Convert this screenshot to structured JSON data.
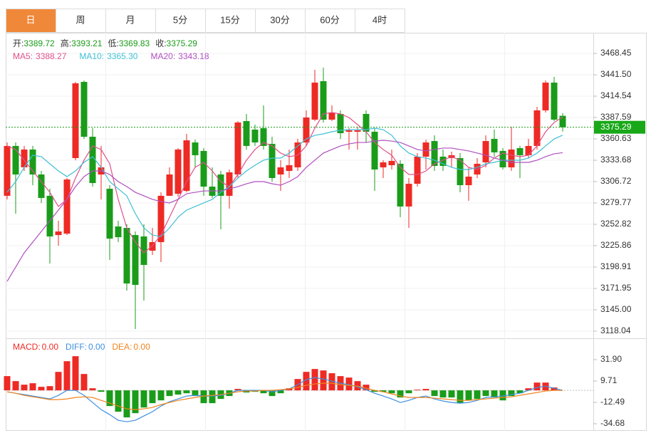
{
  "tabs": [
    "日",
    "周",
    "月",
    "5分",
    "15分",
    "30分",
    "60分",
    "4时"
  ],
  "active_tab": 0,
  "chart_data": [
    {
      "type": "candlestick",
      "ohlc_labels": [
        "开:",
        "高:",
        "低:",
        "收:"
      ],
      "up_color": "#ee2a24",
      "down_color": "#1a9c1a",
      "open": [
        3288.8,
        3351.7,
        3324.7,
        3347.2,
        3315.7,
        3288.8,
        3239.3,
        3241.1,
        3336.4,
        3432.5,
        3363.3,
        3315.7,
        3297.7,
        3250.1,
        3248.3,
        3239.3,
        3237.5,
        3219.6,
        3230.4,
        3288.8,
        3291.4,
        3295.0,
        3356.1,
        3345.4,
        3300.4,
        3315.7,
        3288.8,
        3315.7,
        3383.1,
        3372.3,
        3374.1,
        3354.3,
        3315.7,
        3320.2,
        3324.7,
        3356.1,
        3384.9,
        3433.4,
        3384.9,
        3392.1,
        3369.6,
        3369.6,
        3392.1,
        3369.6,
        3324.7,
        3327.4,
        3329.2,
        3275.3,
        3304.0,
        3338.2,
        3357.9,
        3338.2,
        3336.4,
        3336.4,
        3302.2,
        3315.7,
        3331.0,
        3360.6,
        3345.4,
        3324.7,
        3349.0,
        3340.0,
        3351.7,
        3396.6,
        3431.6,
        3389.72
      ],
      "high": [
        3356.1,
        3356.1,
        3351.7,
        3351.7,
        3320.2,
        3297.7,
        3257.3,
        3311.2,
        3432.5,
        3434.3,
        3374.1,
        3351.7,
        3302.2,
        3257.3,
        3252.8,
        3243.8,
        3252.8,
        3248.3,
        3293.2,
        3324.7,
        3349.0,
        3366.9,
        3359.7,
        3349.0,
        3324.7,
        3320.2,
        3322.0,
        3383.1,
        3392.1,
        3378.6,
        3402.9,
        3363.3,
        3333.7,
        3347.2,
        3360.6,
        3396.6,
        3447.8,
        3450.5,
        3402.9,
        3396.6,
        3374.1,
        3375.9,
        3396.6,
        3374.1,
        3333.7,
        3347.2,
        3333.7,
        3311.2,
        3342.7,
        3359.7,
        3365.1,
        3347.2,
        3344.5,
        3342.7,
        3324.7,
        3336.4,
        3365.1,
        3372.3,
        3349.0,
        3375.9,
        3351.7,
        3360.6,
        3401.1,
        3434.3,
        3438.8,
        3393.21
      ],
      "low": [
        3284.3,
        3266.3,
        3320.2,
        3302.2,
        3279.8,
        3203.4,
        3225.9,
        3239.3,
        3333.7,
        3360.6,
        3300.4,
        3284.3,
        3207.9,
        3230.4,
        3169.3,
        3120.7,
        3156.7,
        3214.2,
        3205.2,
        3288.8,
        3287.9,
        3293.2,
        3324.7,
        3288.8,
        3286.1,
        3246.5,
        3272.6,
        3311.2,
        3347.2,
        3351.7,
        3347.2,
        3306.7,
        3295.0,
        3311.2,
        3320.2,
        3351.7,
        3383.1,
        3381.3,
        3383.1,
        3360.6,
        3347.2,
        3347.2,
        3356.1,
        3295.0,
        3311.2,
        3322.0,
        3261.8,
        3248.3,
        3300.4,
        3322.0,
        3320.2,
        3320.2,
        3324.7,
        3293.2,
        3282.5,
        3311.2,
        3324.7,
        3338.2,
        3322.0,
        3320.2,
        3311.2,
        3336.4,
        3347.2,
        3393.9,
        3383.1,
        3369.83
      ],
      "close": [
        3351.7,
        3315.7,
        3347.2,
        3315.7,
        3286.1,
        3237.5,
        3243.8,
        3309.4,
        3430.7,
        3363.3,
        3304.9,
        3324.7,
        3234.8,
        3236.6,
        3178.2,
        3176.4,
        3201.6,
        3230.4,
        3288.8,
        3315.7,
        3347.2,
        3358.8,
        3340.0,
        3300.4,
        3288.8,
        3288.8,
        3318.4,
        3381.3,
        3351.7,
        3356.1,
        3351.7,
        3311.2,
        3324.7,
        3327.4,
        3356.1,
        3387.6,
        3431.6,
        3384.9,
        3393.9,
        3367.8,
        3371.4,
        3371.4,
        3369.6,
        3322.0,
        3331.0,
        3332.8,
        3275.3,
        3304.0,
        3338.2,
        3356.1,
        3326.5,
        3326.5,
        3340.0,
        3302.2,
        3313.0,
        3329.2,
        3357.9,
        3343.6,
        3324.7,
        3347.2,
        3340.0,
        3351.7,
        3396.6,
        3431.6,
        3384.9,
        3375.29
      ],
      "series": [
        {
          "name": "MA5:",
          "label": "3388.27",
          "color": "#e0508a",
          "values": [
            3351.7,
            3347.2,
            3333.7,
            3320.2,
            3306.7,
            3293.2,
            3275.3,
            3284.3,
            3311.2,
            3333.7,
            3351.7,
            3347.2,
            3329.2,
            3284.3,
            3248.3,
            3230.4,
            3216.9,
            3225.9,
            3239.3,
            3261.8,
            3284.3,
            3306.7,
            3324.7,
            3331.0,
            3320.2,
            3306.7,
            3300.4,
            3315.7,
            3333.7,
            3347.2,
            3356.1,
            3351.7,
            3342.7,
            3338.2,
            3340.0,
            3351.7,
            3374.1,
            3392.1,
            3393.9,
            3392.1,
            3387.6,
            3378.6,
            3369.6,
            3356.1,
            3347.2,
            3340.0,
            3324.7,
            3315.7,
            3315.7,
            3320.2,
            3329.2,
            3333.7,
            3338.2,
            3333.7,
            3324.7,
            3322.0,
            3327.4,
            3336.4,
            3342.7,
            3340.0,
            3338.2,
            3340.0,
            3351.7,
            3369.6,
            3381.3,
            3388.27
          ]
        },
        {
          "name": "MA10:",
          "label": "3365.30",
          "color": "#3fbfd6",
          "values": [
            3293.2,
            3306.7,
            3324.7,
            3340.0,
            3338.2,
            3329.2,
            3320.2,
            3313.0,
            3320.2,
            3331.0,
            3338.2,
            3324.7,
            3306.7,
            3297.7,
            3288.8,
            3266.3,
            3248.3,
            3239.3,
            3237.5,
            3248.3,
            3261.8,
            3270.8,
            3275.3,
            3279.8,
            3284.3,
            3293.2,
            3300.4,
            3311.2,
            3320.2,
            3327.4,
            3333.7,
            3336.4,
            3336.4,
            3342.7,
            3351.7,
            3360.6,
            3365.1,
            3366.9,
            3369.6,
            3371.4,
            3372.3,
            3372.3,
            3372.3,
            3374.1,
            3372.3,
            3365.1,
            3351.7,
            3342.7,
            3338.2,
            3336.4,
            3333.7,
            3329.2,
            3324.7,
            3322.0,
            3322.0,
            3324.7,
            3329.2,
            3331.0,
            3333.7,
            3333.7,
            3333.7,
            3336.4,
            3342.7,
            3351.7,
            3360.6,
            3365.3
          ]
        },
        {
          "name": "MA20:",
          "label": "3343.18",
          "color": "#b04fc0",
          "values": [
            3180.9,
            3198.9,
            3216.9,
            3230.4,
            3243.8,
            3257.3,
            3270.8,
            3284.3,
            3300.4,
            3313.0,
            3320.2,
            3320.2,
            3315.7,
            3306.7,
            3300.4,
            3293.2,
            3288.8,
            3284.3,
            3281.6,
            3279.8,
            3284.3,
            3291.4,
            3293.2,
            3295.0,
            3295.0,
            3295.0,
            3297.7,
            3300.4,
            3304.0,
            3306.7,
            3306.7,
            3304.0,
            3302.2,
            3306.7,
            3313.0,
            3324.7,
            3333.7,
            3342.7,
            3347.2,
            3351.7,
            3354.3,
            3356.1,
            3356.1,
            3357.9,
            3358.8,
            3357.9,
            3356.1,
            3351.7,
            3347.2,
            3345.4,
            3347.2,
            3349.0,
            3349.0,
            3347.2,
            3345.4,
            3342.7,
            3340.0,
            3336.4,
            3333.7,
            3331.0,
            3331.0,
            3331.0,
            3333.7,
            3338.2,
            3341.8,
            3343.18
          ]
        }
      ],
      "ylim": [
        3109.06,
        3493.6
      ],
      "yticks": [
        3468.45,
        {
          "value": 3441.5,
          "label": "3441.50"
        },
        3414.54,
        3387.59,
        3360.63,
        3333.68,
        3306.72,
        3279.77,
        3252.82,
        3225.86,
        3198.91,
        3171.95,
        {
          "value": 3145,
          "label": "3145.00"
        },
        3118.04
      ],
      "grid": true
    },
    {
      "type": "macd",
      "up_color": "#ee2a24",
      "down_color": "#1a9c1a",
      "series": [
        {
          "name": "MACD:",
          "label": "0.00",
          "color": "#ee2a24",
          "kind": "bar",
          "values": [
            14.8,
            9.6,
            5.9,
            7.4,
            3.7,
            4.4,
            19.2,
            30.3,
            35.5,
            17.0,
            2.2,
            -1.5,
            -16.3,
            -22.2,
            -28.1,
            -23.7,
            -17.8,
            -13.3,
            -10.4,
            -5.9,
            -4.4,
            -3.0,
            -5.9,
            -13.3,
            -13.3,
            -8.9,
            -5.9,
            1.5,
            -2.2,
            -1.5,
            -3.0,
            -5.9,
            -3.0,
            2.2,
            11.8,
            19.2,
            22.2,
            20.7,
            17.8,
            14.8,
            13.3,
            9.6,
            5.9,
            -1.5,
            -1.5,
            -3.0,
            -7.4,
            -3.0,
            0.7,
            1.5,
            -5.9,
            -7.4,
            -7.4,
            -13.3,
            -10.4,
            -8.9,
            -5.9,
            -7.4,
            -10.4,
            -5.9,
            -3.0,
            2.2,
            8.1,
            8.1,
            3.0,
            0
          ]
        },
        {
          "name": "DIFF:",
          "label": "0.00",
          "color": "#3d8fe0",
          "kind": "line",
          "values": [
            -1.5,
            -3.0,
            -4.4,
            -5.9,
            -7.4,
            -8.9,
            -5.2,
            0,
            0,
            -5.2,
            -12.6,
            -20.0,
            -25.2,
            -31.1,
            -32.6,
            -31.1,
            -26.6,
            -22.2,
            -16.3,
            -11.8,
            -8.9,
            -5.9,
            -5.2,
            -5.9,
            -5.9,
            -5.2,
            -3.0,
            0,
            0,
            0,
            0,
            -1.5,
            0,
            1.5,
            5.9,
            11.1,
            13.3,
            11.8,
            9.6,
            7.4,
            5.9,
            3.7,
            0.7,
            -3.0,
            -5.9,
            -8.9,
            -12.6,
            -10.4,
            -7.4,
            -5.9,
            -8.9,
            -11.1,
            -12.6,
            -13.3,
            -12.6,
            -10.4,
            -7.4,
            -6.7,
            -5.9,
            -4.4,
            -3.0,
            0,
            3.0,
            4.4,
            2.2,
            0
          ]
        },
        {
          "name": "DEA:",
          "label": "0.00",
          "color": "#f0841e",
          "kind": "line",
          "values": [
            -1.5,
            -3.0,
            -5.2,
            -6.7,
            -8.1,
            -9.6,
            -9.6,
            -8.9,
            -7.4,
            -6.7,
            -7.4,
            -10.4,
            -13.3,
            -16.3,
            -19.2,
            -20.0,
            -19.2,
            -17.8,
            -14.8,
            -12.6,
            -10.4,
            -8.9,
            -7.4,
            -5.9,
            -5.2,
            -4.4,
            -3.0,
            -1.5,
            -0.7,
            -0.7,
            0,
            0,
            0.7,
            1.5,
            3.0,
            5.2,
            6.7,
            7.4,
            7.4,
            5.9,
            5.2,
            4.4,
            2.2,
            0,
            -1.5,
            -3.7,
            -5.9,
            -7.4,
            -7.4,
            -7.4,
            -8.1,
            -8.9,
            -9.6,
            -10.4,
            -10.4,
            -9.6,
            -8.9,
            -8.1,
            -7.4,
            -6.7,
            -5.2,
            -3.7,
            -2.2,
            -0.7,
            0,
            0
          ]
        }
      ],
      "ylim": [
        -42.08,
        51.88
      ],
      "yticks": [
        {
          "value": 31.9,
          "label": "31.90"
        },
        9.71,
        -12.49,
        -34.68
      ]
    }
  ]
}
